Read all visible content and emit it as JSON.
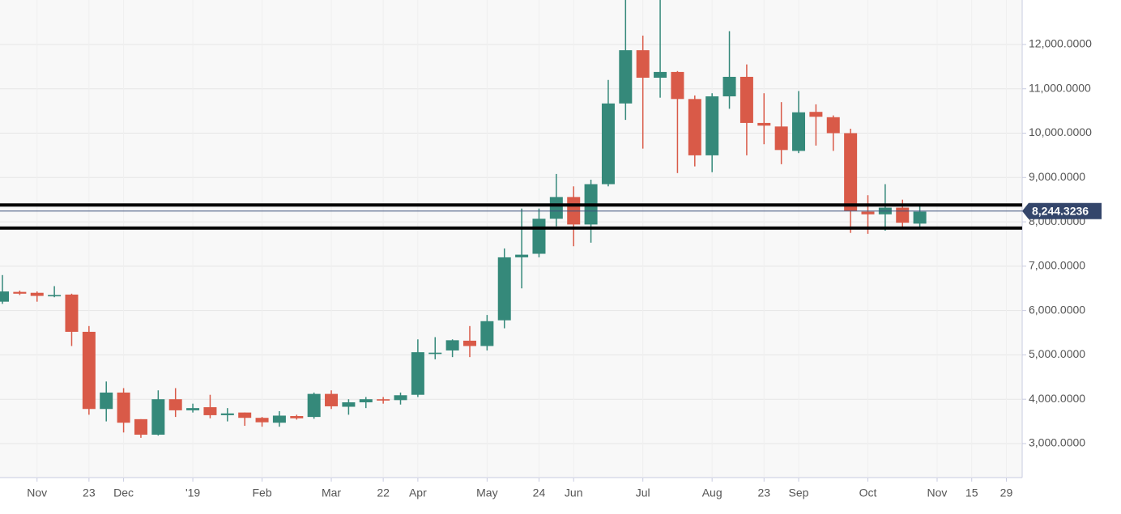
{
  "chart_data": {
    "type": "candlestick",
    "categories": [
      null,
      null,
      "Nov",
      null,
      null,
      "23",
      null,
      "Dec",
      null,
      null,
      null,
      "'19",
      null,
      null,
      null,
      "Feb",
      null,
      null,
      null,
      "Mar",
      null,
      null,
      "22",
      null,
      "Apr",
      null,
      null,
      null,
      "May",
      null,
      null,
      "24",
      null,
      "Jun",
      null,
      null,
      null,
      "Jul",
      null,
      null,
      null,
      "Aug",
      null,
      null,
      "23",
      null,
      "Sep",
      null,
      null,
      null,
      "Oct",
      null,
      null,
      null,
      "Nov",
      null,
      "15",
      null,
      "29"
    ],
    "open": [
      6200,
      6420,
      6400,
      6320,
      6360,
      5520,
      3780,
      4150,
      3550,
      3200,
      4000,
      3750,
      3820,
      3640,
      3700,
      3580,
      3470,
      3620,
      3600,
      4120,
      3830,
      3930,
      4000,
      3980,
      4100,
      5020,
      5100,
      5320,
      5200,
      5780,
      7200,
      7280,
      8070,
      8560,
      7940,
      8850,
      10670,
      11870,
      11250,
      11380,
      10770,
      9500,
      10830,
      11270,
      10230,
      10150,
      9600,
      10480,
      10360,
      10000,
      8230,
      8170,
      8320,
      7960,
      null,
      null,
      null,
      null,
      null
    ],
    "high": [
      6800,
      6450,
      6430,
      6550,
      6380,
      5650,
      4400,
      4250,
      3550,
      4200,
      4250,
      3900,
      4100,
      3800,
      3700,
      3600,
      3730,
      3650,
      4150,
      4200,
      4000,
      4050,
      4050,
      4150,
      5350,
      5400,
      5350,
      5650,
      5900,
      7400,
      8300,
      8300,
      9080,
      8800,
      8950,
      11200,
      13100,
      12200,
      13100,
      11400,
      10850,
      10900,
      12300,
      11550,
      10900,
      10700,
      10950,
      10650,
      10400,
      10100,
      8600,
      8850,
      8500,
      8350,
      null,
      null,
      null,
      null,
      null
    ],
    "low": [
      6150,
      6350,
      6200,
      6300,
      5200,
      3650,
      3500,
      3250,
      3130,
      3180,
      3600,
      3700,
      3570,
      3500,
      3400,
      3380,
      3380,
      3540,
      3560,
      3780,
      3650,
      3800,
      3900,
      3880,
      4050,
      4900,
      4950,
      4950,
      5100,
      5600,
      6500,
      7200,
      7900,
      7450,
      7530,
      8800,
      10300,
      9650,
      10800,
      9100,
      9250,
      9120,
      10550,
      9500,
      9750,
      9300,
      9550,
      9720,
      9600,
      7750,
      7730,
      7800,
      7890,
      7880,
      null,
      null,
      null,
      null,
      null
    ],
    "close": [
      6430,
      6380,
      6330,
      6350,
      5520,
      3780,
      4150,
      3470,
      3200,
      4000,
      3750,
      3800,
      3640,
      3680,
      3580,
      3480,
      3630,
      3570,
      4120,
      3840,
      3930,
      4000,
      3970,
      4090,
      5060,
      5050,
      5330,
      5200,
      5760,
      7200,
      7260,
      8070,
      8560,
      7940,
      8850,
      10670,
      11870,
      11250,
      11380,
      10770,
      9500,
      10830,
      11270,
      10230,
      10170,
      9620,
      10470,
      10370,
      10000,
      8250,
      8170,
      8320,
      7980,
      8230,
      null,
      null,
      null,
      null,
      null
    ],
    "up_color": "#35897a",
    "down_color": "#d95a48",
    "ylim": [
      2233,
      13003
    ],
    "yticks": [
      {
        "value": 3000,
        "label": "3,000.0000"
      },
      {
        "value": 4000,
        "label": "4,000.0000"
      },
      {
        "value": 5000,
        "label": "5,000.0000"
      },
      {
        "value": 6000,
        "label": "6,000.0000"
      },
      {
        "value": 7000,
        "label": "7,000.0000"
      },
      {
        "value": 8000,
        "label": "8,000.0000"
      },
      {
        "value": 9000,
        "label": "9,000.0000"
      },
      {
        "value": 10000,
        "label": "10,000.0000"
      },
      {
        "value": 11000,
        "label": "11,000.0000"
      },
      {
        "value": 12000,
        "label": "12,000.0000"
      }
    ],
    "grid": true,
    "hlines": [
      8380,
      7860
    ],
    "last_price": {
      "value": 8244.3236,
      "label": "8,244.3236"
    }
  }
}
